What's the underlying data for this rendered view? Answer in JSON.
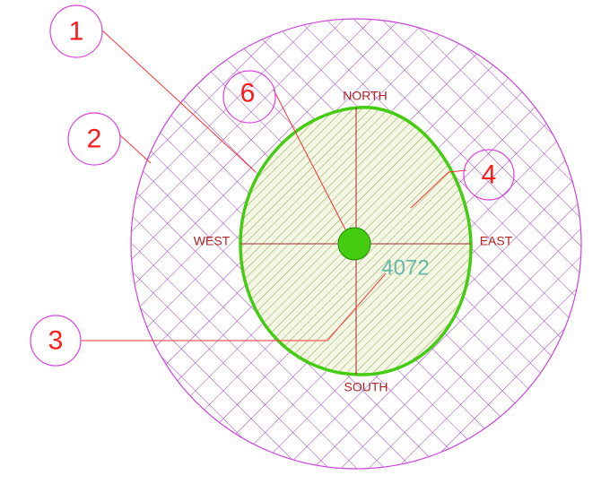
{
  "callouts": [
    {
      "label": "1"
    },
    {
      "label": "2"
    },
    {
      "label": "3"
    },
    {
      "label": "4"
    },
    {
      "label": "6"
    }
  ],
  "directions": {
    "north": "NORTH",
    "south": "SOUTH",
    "east": "EAST",
    "west": "WEST"
  },
  "center_label": "4072"
}
